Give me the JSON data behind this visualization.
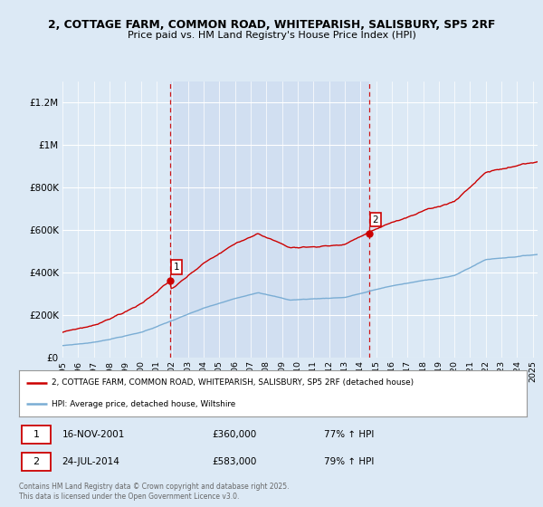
{
  "title_line1": "2, COTTAGE FARM, COMMON ROAD, WHITEPARISH, SALISBURY, SP5 2RF",
  "title_line2": "Price paid vs. HM Land Registry's House Price Index (HPI)",
  "background_color": "#dce9f5",
  "plot_bg_color": "#dce9f5",
  "ylim": [
    0,
    1300000
  ],
  "yticks": [
    0,
    200000,
    400000,
    600000,
    800000,
    1000000,
    1200000
  ],
  "ytick_labels": [
    "£0",
    "£200K",
    "£400K",
    "£600K",
    "£800K",
    "£1M",
    "£1.2M"
  ],
  "sale1_date": 2001.88,
  "sale1_price": 360000,
  "sale2_date": 2014.56,
  "sale2_price": 583000,
  "legend_property": "2, COTTAGE FARM, COMMON ROAD, WHITEPARISH, SALISBURY, SP5 2RF (detached house)",
  "legend_hpi": "HPI: Average price, detached house, Wiltshire",
  "footer": "Contains HM Land Registry data © Crown copyright and database right 2025.\nThis data is licensed under the Open Government Licence v3.0.",
  "red_line_color": "#cc0000",
  "blue_line_color": "#7aadd4",
  "vline_color": "#cc0000",
  "grid_color": "#ffffff",
  "sale_marker_color": "#cc0000",
  "xlim_left": 1995.0,
  "xlim_right": 2025.3
}
